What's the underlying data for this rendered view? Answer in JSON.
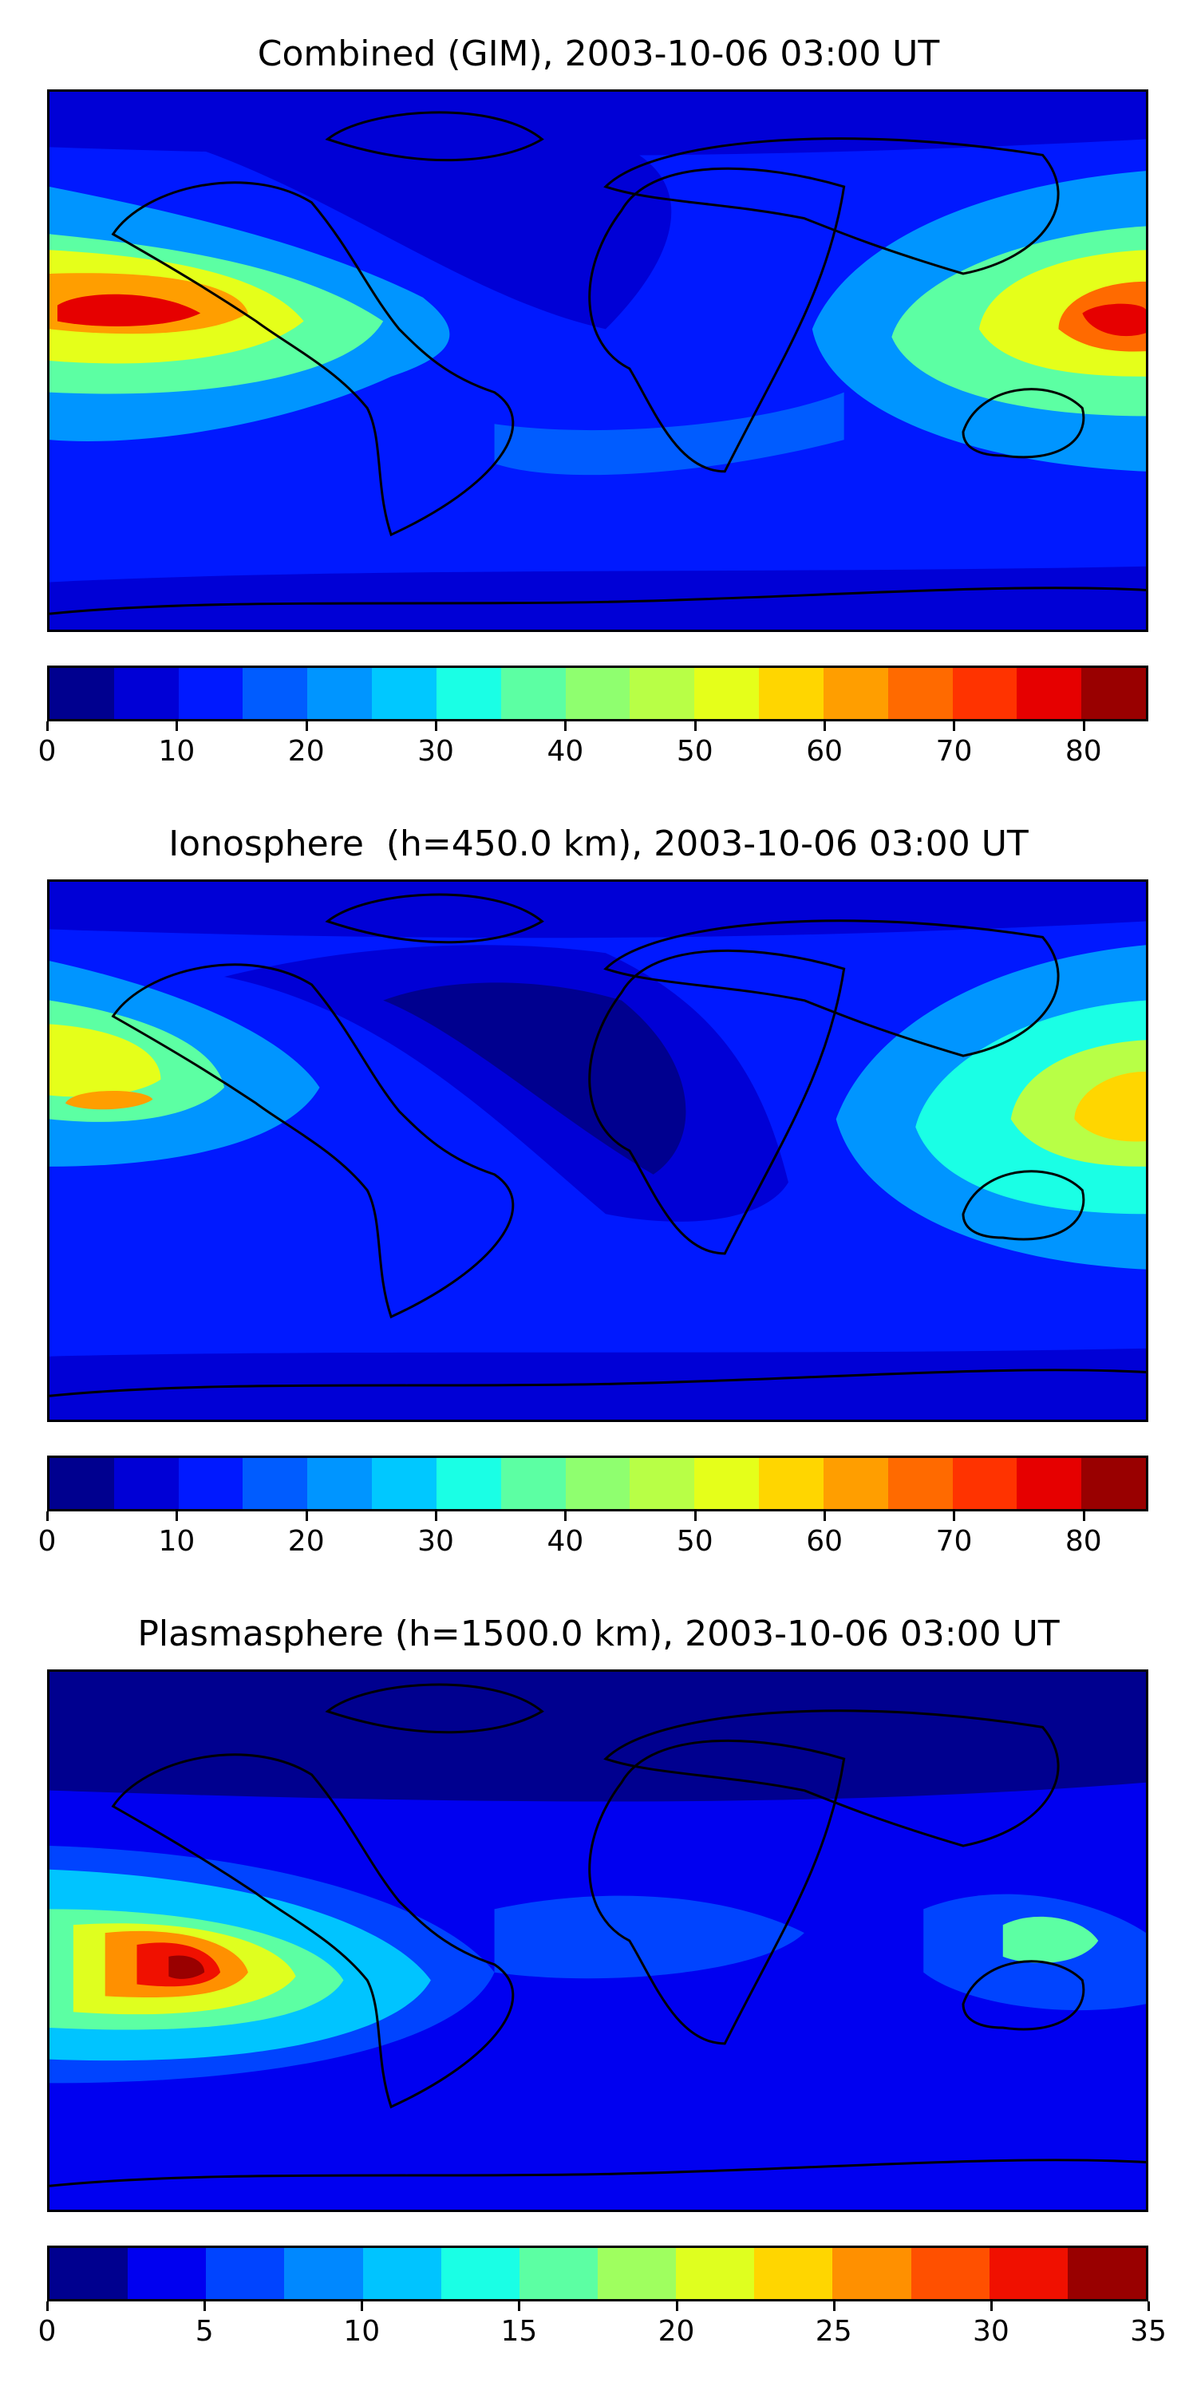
{
  "panels": [
    {
      "title": "Combined (GIM), 2003-10-06 03:00 UT",
      "colorbar_ticks": [
        "0",
        "10",
        "20",
        "30",
        "40",
        "50",
        "60",
        "70",
        "80"
      ],
      "colorbar_range": [
        0,
        85
      ],
      "colorbar_step": 5
    },
    {
      "title": "Ionosphere  (h=450.0 km), 2003-10-06 03:00 UT",
      "colorbar_ticks": [
        "0",
        "10",
        "20",
        "30",
        "40",
        "50",
        "60",
        "70",
        "80"
      ],
      "colorbar_range": [
        0,
        85
      ],
      "colorbar_step": 5
    },
    {
      "title": "Plasmasphere (h=1500.0 km), 2003-10-06 03:00 UT",
      "colorbar_ticks": [
        "0",
        "5",
        "10",
        "15",
        "20",
        "25",
        "30",
        "35"
      ],
      "colorbar_range": [
        0,
        35
      ],
      "colorbar_step": 2.5
    }
  ],
  "colormap": [
    "#00008f",
    "#0000d6",
    "#0019ff",
    "#005cff",
    "#0095ff",
    "#00c8ff",
    "#1affe5",
    "#5cffa3",
    "#8fff6f",
    "#b8ff46",
    "#e5ff1a",
    "#ffd600",
    "#ff9e00",
    "#ff6a00",
    "#ff3300",
    "#e60000",
    "#990000"
  ],
  "colormap_plasmasphere": [
    "#00008f",
    "#0000f0",
    "#0044ff",
    "#0088ff",
    "#00c4ff",
    "#1affe5",
    "#5cffa3",
    "#9fff5f",
    "#dfff1f",
    "#ffd600",
    "#ff9000",
    "#ff5000",
    "#f01000",
    "#990000"
  ]
}
